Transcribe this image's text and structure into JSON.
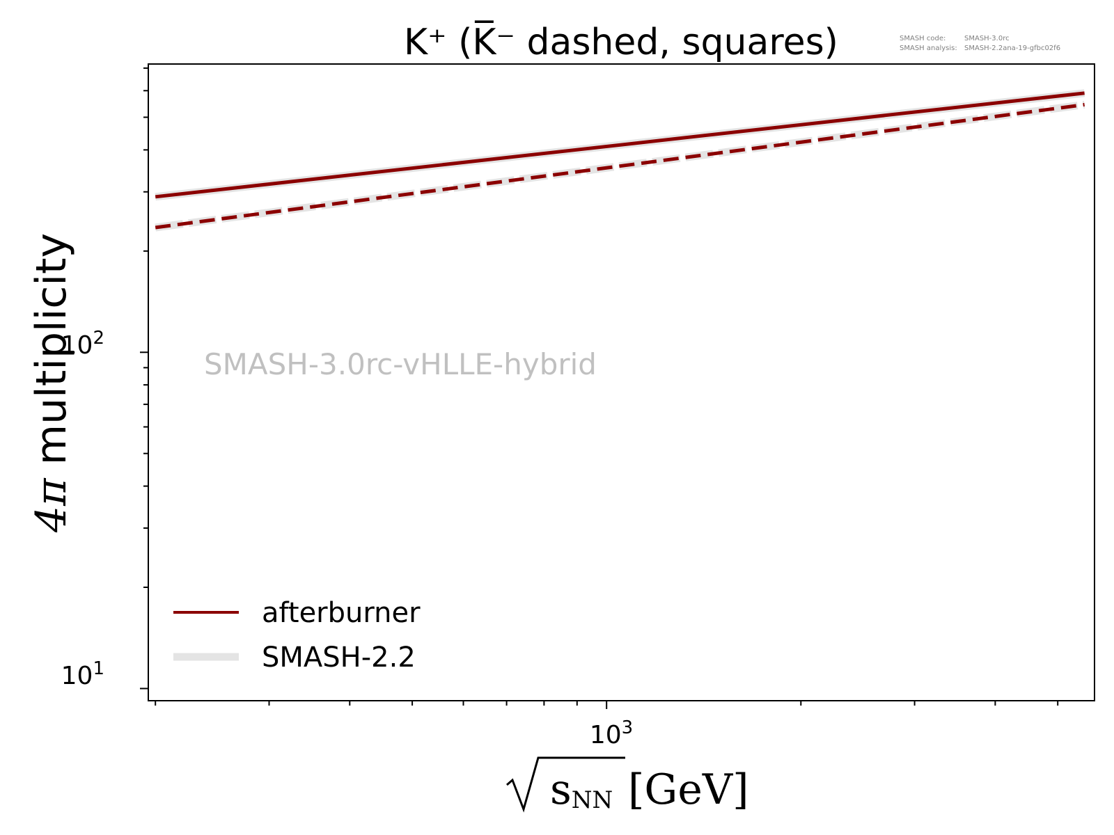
{
  "chart_data": {
    "type": "line",
    "title": "K⁺ (K̅⁻ dashed, squares)",
    "xlabel_radicand": "s",
    "xlabel_subscript": "NN",
    "xlabel_unit": "[GeV]",
    "ylabel_pi": "4π",
    "ylabel_text": " multiplicity",
    "x_scale": "log",
    "y_scale": "log",
    "xlim": [
      195,
      5700
    ],
    "ylim": [
      9.2,
      720
    ],
    "x_tick_labels": [
      {
        "base": "10",
        "exp": "3",
        "value": 1000
      }
    ],
    "y_tick_labels": [
      {
        "base": "10",
        "exp": "1",
        "value": 10
      },
      {
        "base": "10",
        "exp": "2",
        "value": 100
      }
    ],
    "annotation": "SMASH-3.0rc-vHLLE-hybrid",
    "version_info": [
      {
        "label": "SMASH code:",
        "value": "SMASH-3.0rc"
      },
      {
        "label": "SMASH analysis:",
        "value": "SMASH-2.2ana-19-gfbc02f6"
      }
    ],
    "series": [
      {
        "name": "afterburner",
        "kind": "K+",
        "style": "solid",
        "color": "#8b0000",
        "x": [
          200,
          5500
        ],
        "y": [
          290,
          590
        ]
      },
      {
        "name": "SMASH-2.2",
        "kind": "K+",
        "style": "solid",
        "color": "#e4e4e4",
        "x": [
          200,
          5500
        ],
        "y": [
          290,
          590
        ]
      },
      {
        "name": "",
        "kind": "K-",
        "style": "dashed",
        "color": "#8b0000",
        "x": [
          200,
          5500
        ],
        "y": [
          235,
          545
        ]
      },
      {
        "name": "",
        "kind": "K-",
        "style": "dashed",
        "color": "#e4e4e4",
        "x": [
          200,
          5500
        ],
        "y": [
          235,
          545
        ]
      }
    ],
    "legend": {
      "placement": "lower-left",
      "entries": [
        {
          "label": "afterburner",
          "color": "#8b0000"
        },
        {
          "label": "SMASH-2.2",
          "color": "#e4e4e4"
        }
      ]
    }
  }
}
